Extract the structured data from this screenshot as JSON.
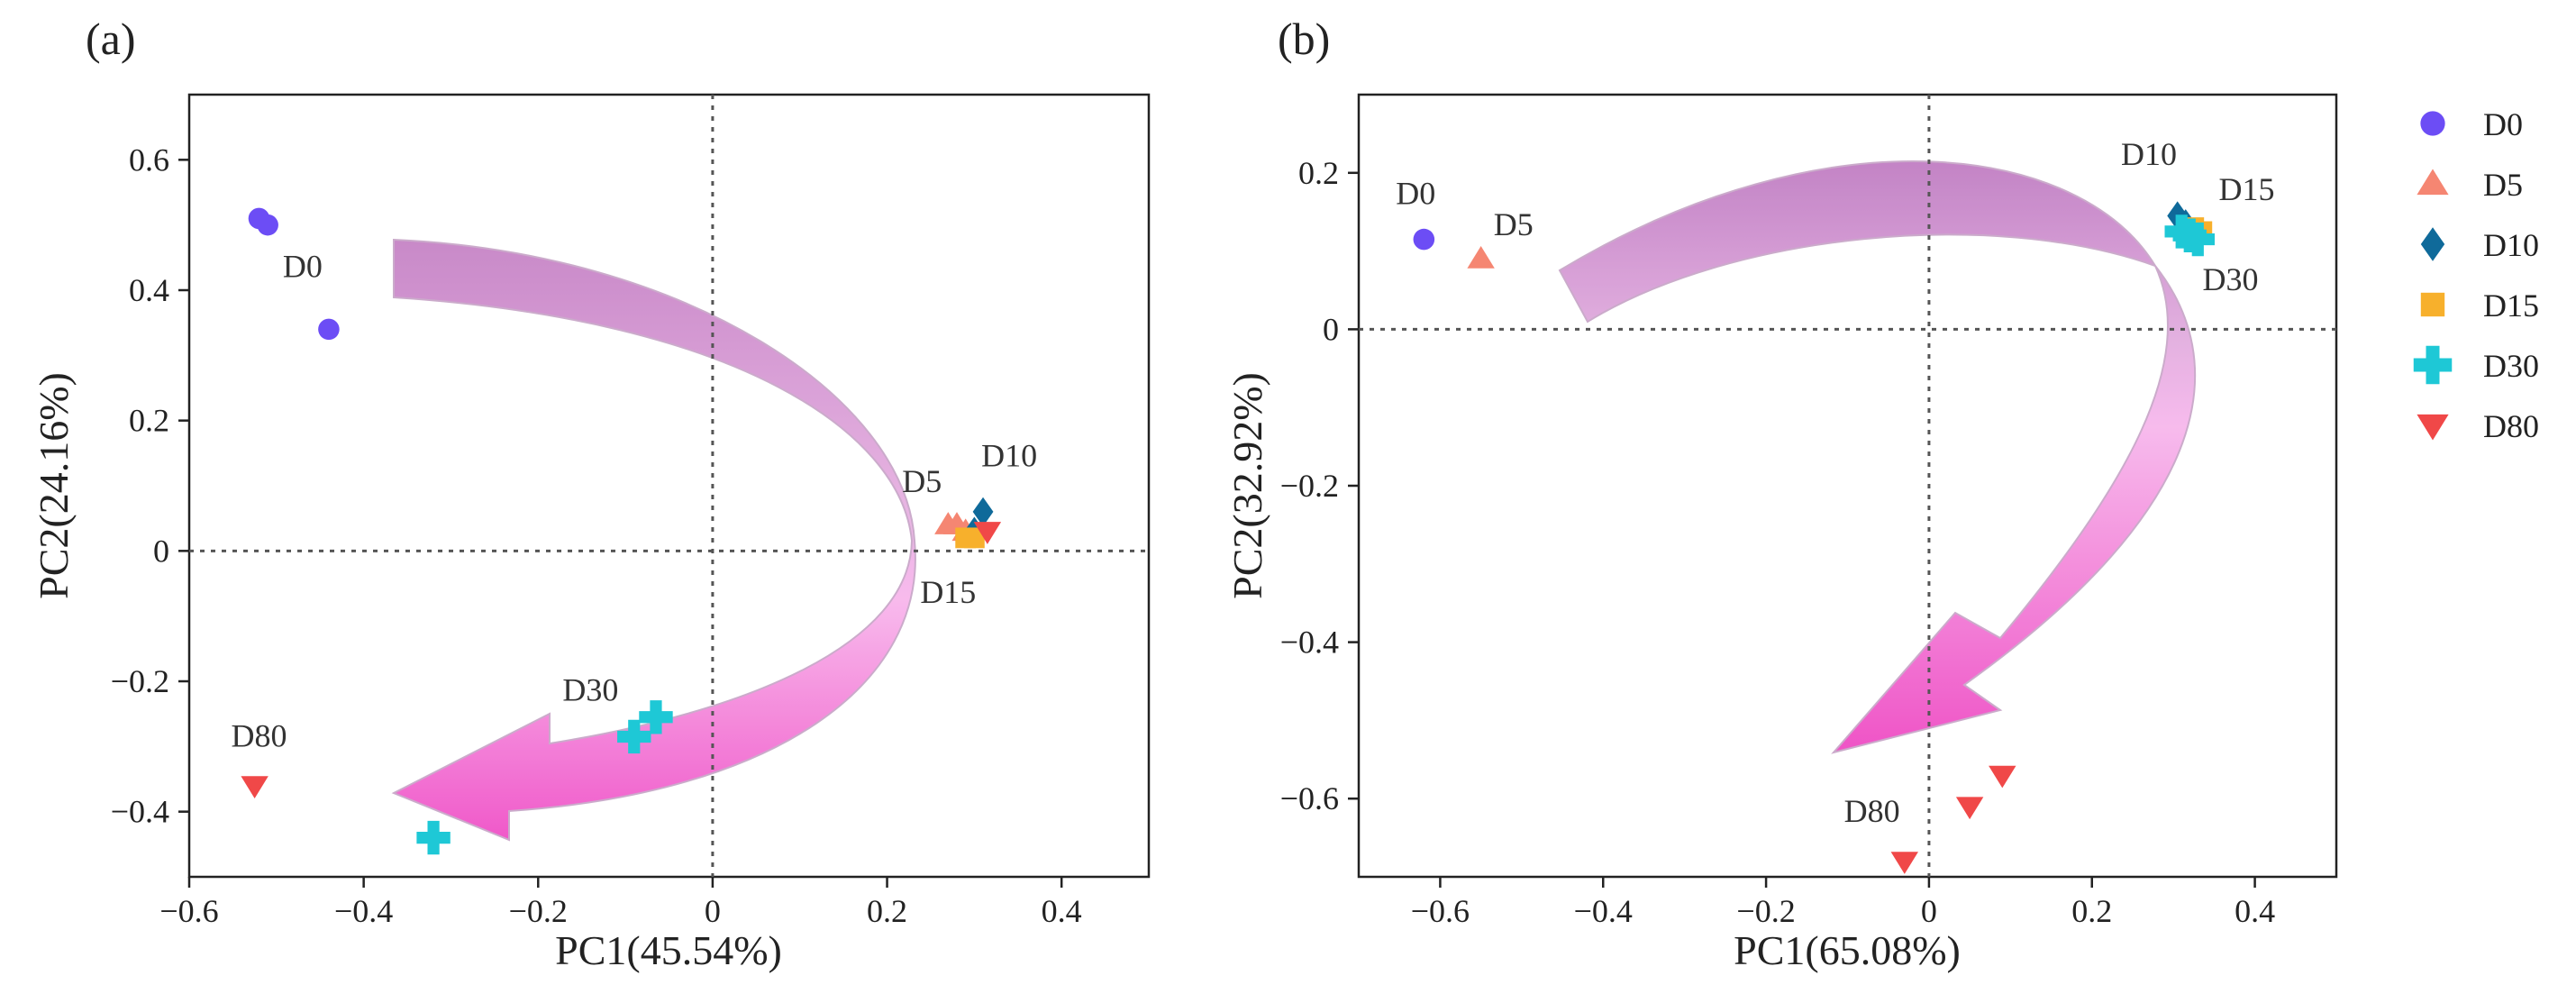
{
  "figure": {
    "legend": {
      "placement": "right",
      "entries": [
        {
          "label": "D0",
          "marker": "circle",
          "color": "#6c4df5"
        },
        {
          "label": "D5",
          "marker": "triangle",
          "color": "#f58672"
        },
        {
          "label": "D10",
          "marker": "diamond",
          "color": "#0f6a9a"
        },
        {
          "label": "D15",
          "marker": "square",
          "color": "#f7b02c"
        },
        {
          "label": "D30",
          "marker": "plus",
          "color": "#1ec8d6"
        },
        {
          "label": "D80",
          "marker": "triangle-down",
          "color": "#f04848"
        }
      ]
    }
  },
  "chart_data": [
    {
      "type": "scatter",
      "panel": "(a)",
      "xlabel": "PC1(45.54%)",
      "ylabel": "PC2(24.16%)",
      "xlim": [
        -0.6,
        0.5
      ],
      "ylim": [
        -0.5,
        0.7
      ],
      "xticks": [
        -0.6,
        -0.4,
        -0.2,
        0,
        0.2,
        0.4
      ],
      "xtick_labels": [
        "−0.6",
        "−0.4",
        "−0.2",
        "0",
        "0.2",
        "0.4"
      ],
      "yticks": [
        -0.4,
        -0.2,
        0,
        0.2,
        0.4,
        0.6
      ],
      "ytick_labels": [
        "−0.4",
        "−0.2",
        "0",
        "0.2",
        "0.4",
        "0.6"
      ],
      "grid": false,
      "reference_lines": {
        "x": 0,
        "y": 0,
        "style": "dotted"
      },
      "series": [
        {
          "name": "D0",
          "points": [
            [
              -0.52,
              0.51
            ],
            [
              -0.51,
              0.5
            ],
            [
              -0.44,
              0.34
            ]
          ]
        },
        {
          "name": "D5",
          "points": [
            [
              0.27,
              0.04
            ],
            [
              0.28,
              0.04
            ],
            [
              0.29,
              0.03
            ]
          ]
        },
        {
          "name": "D10",
          "points": [
            [
              0.31,
              0.06
            ],
            [
              0.3,
              0.03
            ]
          ]
        },
        {
          "name": "D15",
          "points": [
            [
              0.29,
              0.02
            ],
            [
              0.3,
              0.02
            ]
          ]
        },
        {
          "name": "D30",
          "points": [
            [
              -0.065,
              -0.255
            ],
            [
              -0.09,
              -0.285
            ],
            [
              -0.32,
              -0.44
            ]
          ]
        },
        {
          "name": "D80",
          "points": [
            [
              -0.525,
              -0.36
            ],
            [
              0.315,
              0.03
            ]
          ]
        }
      ],
      "annotations": [
        {
          "text": "D0",
          "x": -0.47,
          "y": 0.42
        },
        {
          "text": "D5",
          "x": 0.24,
          "y": 0.09
        },
        {
          "text": "D10",
          "x": 0.34,
          "y": 0.13
        },
        {
          "text": "D15",
          "x": 0.27,
          "y": -0.08
        },
        {
          "text": "D30",
          "x": -0.14,
          "y": -0.23
        },
        {
          "text": "D80",
          "x": -0.52,
          "y": -0.3
        }
      ]
    },
    {
      "type": "scatter",
      "panel": "(b)",
      "xlabel": "PC1(65.08%)",
      "ylabel": "PC2(32.92%)",
      "xlim": [
        -0.7,
        0.5
      ],
      "ylim": [
        -0.7,
        0.3
      ],
      "xticks": [
        -0.6,
        -0.4,
        -0.2,
        0,
        0.2,
        0.4
      ],
      "xtick_labels": [
        "−0.6",
        "−0.4",
        "−0.2",
        "0",
        "0.2",
        "0.4"
      ],
      "yticks": [
        -0.6,
        -0.4,
        -0.2,
        0,
        0.2
      ],
      "ytick_labels": [
        "−0.6",
        "−0.4",
        "−0.2",
        "0",
        "0.2"
      ],
      "grid": false,
      "reference_lines": {
        "x": 0,
        "y": 0,
        "style": "dotted"
      },
      "series": [
        {
          "name": "D0",
          "points": [
            [
              -0.62,
              0.115
            ]
          ]
        },
        {
          "name": "D5",
          "points": [
            [
              -0.55,
              0.09
            ]
          ]
        },
        {
          "name": "D10",
          "points": [
            [
              0.305,
              0.145
            ],
            [
              0.315,
              0.135
            ]
          ]
        },
        {
          "name": "D15",
          "points": [
            [
              0.335,
              0.125
            ],
            [
              0.325,
              0.13
            ]
          ]
        },
        {
          "name": "D30",
          "points": [
            [
              0.31,
              0.125
            ],
            [
              0.32,
              0.12
            ],
            [
              0.33,
              0.115
            ]
          ]
        },
        {
          "name": "D80",
          "points": [
            [
              0.09,
              -0.57
            ],
            [
              0.05,
              -0.61
            ],
            [
              -0.03,
              -0.68
            ]
          ]
        }
      ],
      "annotations": [
        {
          "text": "D0",
          "x": -0.63,
          "y": 0.16
        },
        {
          "text": "D5",
          "x": -0.51,
          "y": 0.12
        },
        {
          "text": "D10",
          "x": 0.27,
          "y": 0.21
        },
        {
          "text": "D15",
          "x": 0.39,
          "y": 0.165
        },
        {
          "text": "D30",
          "x": 0.37,
          "y": 0.05
        },
        {
          "text": "D80",
          "x": -0.07,
          "y": -0.63
        }
      ]
    }
  ]
}
